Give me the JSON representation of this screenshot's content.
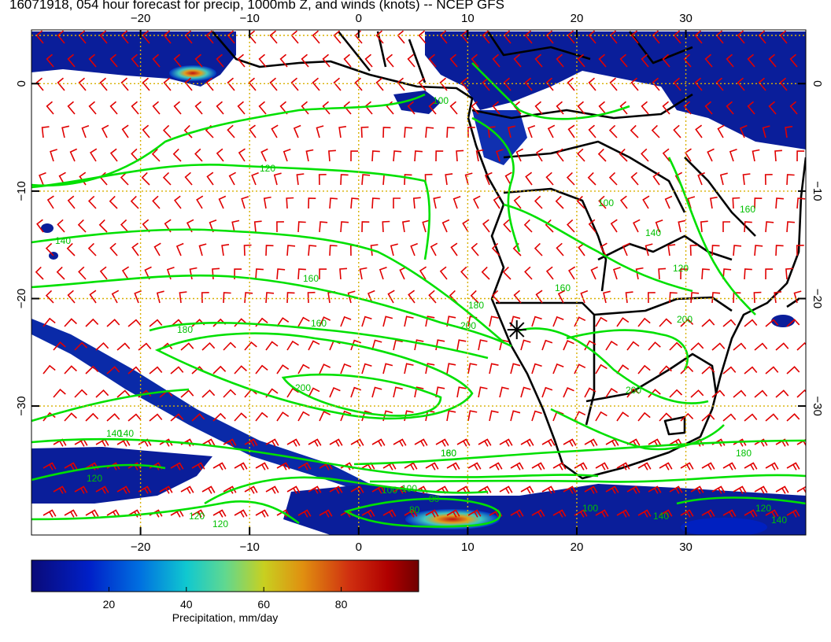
{
  "title": "16071918, 054 hour forecast for precip, 1000mb Z, and winds (knots) -- NCEP GFS",
  "map": {
    "lon_range": [
      -30,
      41
    ],
    "lat_range": [
      -42,
      5
    ],
    "lon_ticks": [
      -20,
      -10,
      0,
      10,
      20,
      30
    ],
    "lat_ticks": [
      0,
      -10,
      -20,
      -30
    ],
    "lon_tick_labels": [
      "−20",
      "−10",
      "0",
      "10",
      "20",
      "30"
    ],
    "lat_tick_labels": [
      "0",
      "−10",
      "−20",
      "−30"
    ],
    "grid": true,
    "contour_labels": [
      "120",
      "140",
      "160",
      "180",
      "200",
      "100",
      "140",
      "120",
      "160",
      "180",
      "200",
      "200",
      "100",
      "140",
      "160",
      "120",
      "100",
      "160",
      "160",
      "200",
      "140",
      "120",
      "180",
      "80",
      "80",
      "100",
      "120",
      "120",
      "140",
      "140",
      "100",
      "160",
      "180"
    ],
    "station_marker": {
      "lon": 14.5,
      "lat": -22.9
    }
  },
  "colorbar": {
    "ticks": [
      "20",
      "40",
      "60",
      "80"
    ],
    "tick_values": [
      20,
      40,
      60,
      80
    ],
    "range": [
      0,
      100
    ],
    "label": "Precipitation, mm/day"
  }
}
